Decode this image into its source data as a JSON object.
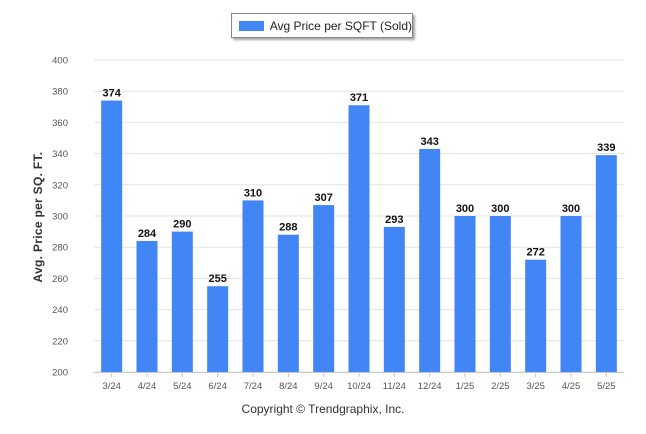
{
  "chart_data": {
    "type": "bar",
    "categories": [
      "3/24",
      "4/24",
      "5/24",
      "6/24",
      "7/24",
      "8/24",
      "9/24",
      "10/24",
      "11/24",
      "12/24",
      "1/25",
      "2/25",
      "3/25",
      "4/25",
      "5/25"
    ],
    "series": [
      {
        "name": "Avg Price per SQFT (Sold)",
        "values": [
          374,
          284,
          290,
          255,
          310,
          288,
          307,
          371,
          293,
          343,
          300,
          300,
          272,
          300,
          339
        ],
        "color": "#4285f4"
      }
    ],
    "xlabel": "",
    "ylabel": "Avg. Price per SQ. FT.",
    "ylim": [
      200,
      400
    ],
    "yticks": [
      200,
      220,
      240,
      260,
      280,
      300,
      320,
      340,
      360,
      380,
      400
    ],
    "grid": true,
    "legend": "top-center"
  },
  "footer": {
    "copyright": "Copyright © Trendgraphix, Inc."
  }
}
